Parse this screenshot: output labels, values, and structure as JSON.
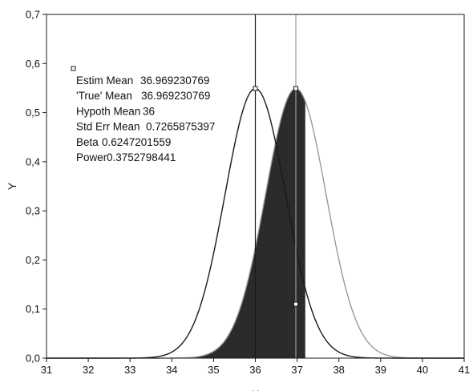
{
  "chart_data": {
    "type": "area",
    "xlabel": "X",
    "ylabel": "Y",
    "xlim": [
      31,
      41
    ],
    "ylim": [
      0,
      0.7
    ],
    "x_ticks": [
      "31",
      "32",
      "33",
      "34",
      "35",
      "36",
      "37",
      "38",
      "39",
      "40",
      "41"
    ],
    "y_ticks": [
      "0,0",
      "0,1",
      "0,2",
      "0,3",
      "0,4",
      "0,5",
      "0,6",
      "0,7"
    ],
    "grid": false,
    "stats": [
      {
        "label": "Estim Mean",
        "value": "36.969230769"
      },
      {
        "label": "'True' Mean",
        "value": "36.969230769"
      },
      {
        "label": "Hypoth Mean",
        "value": "36"
      },
      {
        "label": "Std Err Mean",
        "value": "0.7265875397"
      },
      {
        "label": "Beta",
        "value": "0.6247201559"
      },
      {
        "label": "Power",
        "value": "0.3752798441"
      }
    ],
    "series": [
      {
        "role": "hypothesized",
        "mean": 36,
        "sd": 0.7265875397,
        "color": "#1a1a1a",
        "x": [
          31,
          32,
          33,
          33.5,
          34,
          34.5,
          35,
          35.5,
          36,
          36.5,
          37,
          37.5,
          38,
          38.5,
          39,
          40,
          41
        ],
        "y": [
          0,
          0,
          0.002,
          0.008,
          0.013,
          0.065,
          0.212,
          0.431,
          0.549,
          0.431,
          0.212,
          0.065,
          0.013,
          0.002,
          0,
          0,
          0
        ]
      },
      {
        "role": "true",
        "mean": 36.969230769,
        "sd": 0.7265875397,
        "color": "#999999",
        "x": [
          31,
          33,
          34,
          34.5,
          35,
          35.5,
          36,
          36.5,
          37,
          37.5,
          38,
          38.5,
          39,
          39.5,
          40,
          41
        ],
        "y": [
          0,
          0,
          0.003,
          0.015,
          0.054,
          0.144,
          0.282,
          0.445,
          0.549,
          0.421,
          0.246,
          0.104,
          0.032,
          0.008,
          0.001,
          0
        ]
      }
    ],
    "critical_value": 37.195
  },
  "colors": {
    "axis": "#1a1a1a",
    "hypothesized_curve": "#1a1a1a",
    "true_curve": "#999999",
    "beta_fill": "#2b2b2b",
    "background": "#ffffff"
  }
}
